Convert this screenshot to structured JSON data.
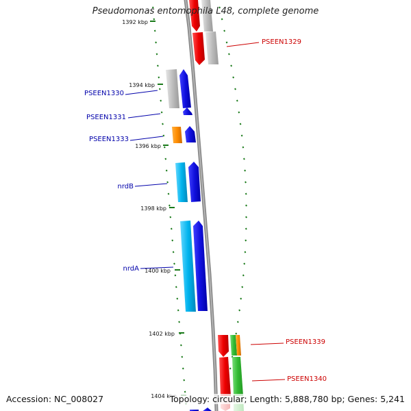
{
  "header": {
    "title": "Pseudomonas entomophila L48, complete genome"
  },
  "footer": {
    "accession": "Accession: NC_008027",
    "summary": "Topology: circular; Length: 5,888,780 bp; Genes: 5,241"
  },
  "map": {
    "ticks": [
      {
        "label": "1392 kbp"
      },
      {
        "label": "1394 kbp"
      },
      {
        "label": "1396 kbp"
      },
      {
        "label": "1398 kbp"
      },
      {
        "label": "1400 kbp"
      },
      {
        "label": "1402 kbp"
      },
      {
        "label": "1404 kbp"
      }
    ],
    "gene_labels": [
      {
        "text": "PSEEN1329",
        "strand": "right",
        "color": "#cc0000"
      },
      {
        "text": "PSEEN1330",
        "strand": "left",
        "color": "#0000aa"
      },
      {
        "text": "PSEEN1331",
        "strand": "left",
        "color": "#0000aa"
      },
      {
        "text": "PSEEN1333",
        "strand": "left",
        "color": "#0000aa"
      },
      {
        "text": "nrdB",
        "strand": "left",
        "color": "#0000aa"
      },
      {
        "text": "nrdA",
        "strand": "left",
        "color": "#0000aa"
      },
      {
        "text": "PSEEN1339",
        "strand": "right",
        "color": "#cc0000"
      },
      {
        "text": "PSEEN1340",
        "strand": "right",
        "color": "#cc0000"
      }
    ],
    "colors": {
      "backbone": "#8a8a8a",
      "tick_dash": "#1a7a1a",
      "gene_red": "#ee0000",
      "gene_grey": "#bdbdbd",
      "gene_blue": "#1010dd",
      "gene_cyan": "#00b4ee",
      "gene_orange": "#ff8c00",
      "gene_green": "#33bb33"
    }
  }
}
